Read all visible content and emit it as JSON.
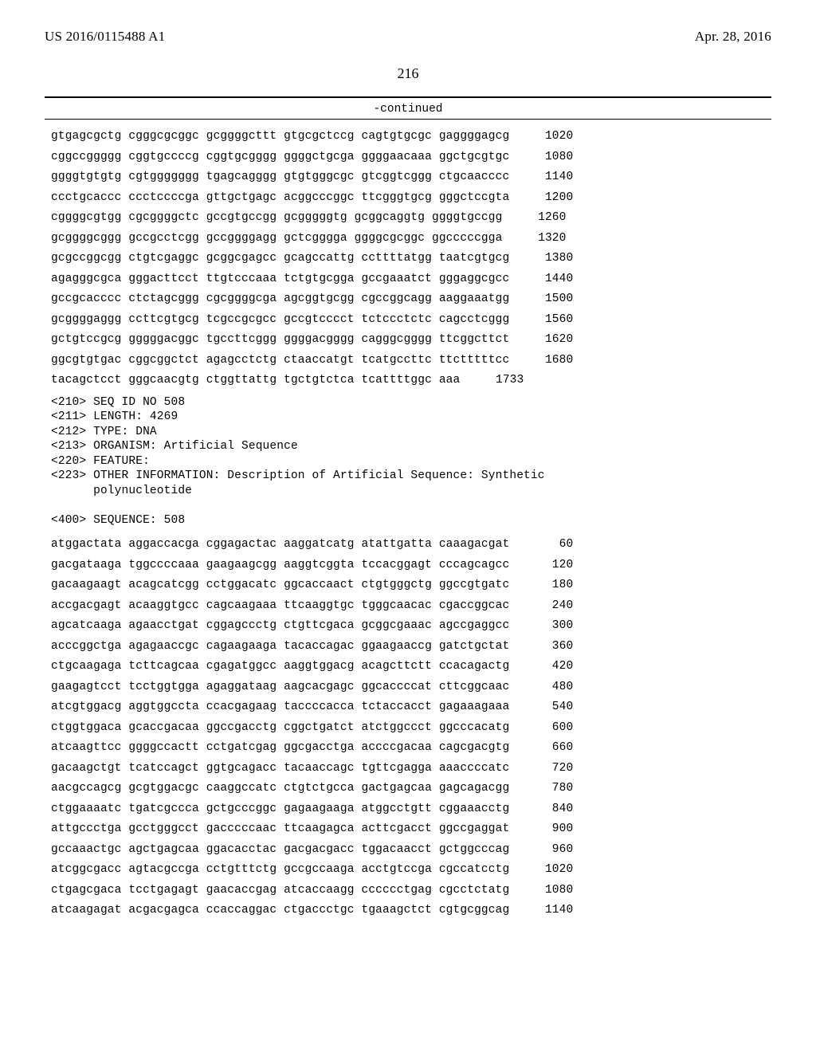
{
  "header": {
    "publication_number": "US 2016/0115488 A1",
    "publication_date": "Apr. 28, 2016",
    "page_number": "216",
    "continued_label": "-continued"
  },
  "sequence_top": {
    "rows": [
      {
        "groups": [
          "gtgagcgctg",
          "cgggcgcggc",
          "gcggggcttt",
          "gtgcgctccg",
          "cagtgtgcgc",
          "gaggggagcg"
        ],
        "pos": "1020"
      },
      {
        "groups": [
          "cggccggggg",
          "cggtgccccg",
          "cggtgcgggg",
          "ggggctgcga",
          "ggggaacaaa",
          "ggctgcgtgc"
        ],
        "pos": "1080"
      },
      {
        "groups": [
          "ggggtgtgtg",
          "cgtggggggg",
          "tgagcagggg",
          "gtgtgggcgc",
          "gtcggtcggg",
          "ctgcaacccc"
        ],
        "pos": "1140"
      },
      {
        "groups": [
          "ccctgcaccc",
          "ccctccccga",
          "gttgctgagc",
          "acggcccggc",
          "ttcgggtgcg",
          "gggctccgta"
        ],
        "pos": "1200"
      },
      {
        "groups": [
          "cggggcgtgg",
          "cgcggggctc",
          "gccgtgccgg",
          "gcgggggtg",
          "gcggcaggtg",
          "ggggtgccgg"
        ],
        "pos": "1260"
      },
      {
        "groups": [
          "gcggggcggg",
          "gccgcctcgg",
          "gccggggagg",
          "gctcgggga",
          "ggggcgcggc",
          "ggcccccgga"
        ],
        "pos": "1320"
      },
      {
        "groups": [
          "gcgccggcgg",
          "ctgtcgaggc",
          "gcggcgagcc",
          "gcagccattg",
          "ccttttatgg",
          "taatcgtgcg"
        ],
        "pos": "1380"
      },
      {
        "groups": [
          "agagggcgca",
          "gggacttcct",
          "ttgtcccaaa",
          "tctgtgcgga",
          "gccgaaatct",
          "gggaggcgcc"
        ],
        "pos": "1440"
      },
      {
        "groups": [
          "gccgcacccc",
          "ctctagcggg",
          "cgcggggcga",
          "agcggtgcgg",
          "cgccggcagg",
          "aaggaaatgg"
        ],
        "pos": "1500"
      },
      {
        "groups": [
          "gcggggaggg",
          "ccttcgtgcg",
          "tcgccgcgcc",
          "gccgtcccct",
          "tctccctctc",
          "cagcctcggg"
        ],
        "pos": "1560"
      },
      {
        "groups": [
          "gctgtccgcg",
          "gggggacggc",
          "tgccttcggg",
          "ggggacgggg",
          "cagggcgggg",
          "ttcggcttct"
        ],
        "pos": "1620"
      },
      {
        "groups": [
          "ggcgtgtgac",
          "cggcggctct",
          "agagcctctg",
          "ctaaccatgt",
          "tcatgccttc",
          "ttctttttcc"
        ],
        "pos": "1680"
      },
      {
        "groups": [
          "tacagctcct",
          "gggcaacgtg",
          "ctggttattg",
          "tgctgtctca",
          "tcattttggc",
          "aaa"
        ],
        "pos": "1733"
      }
    ]
  },
  "metadata": {
    "lines": [
      "<210> SEQ ID NO 508",
      "<211> LENGTH: 4269",
      "<212> TYPE: DNA",
      "<213> ORGANISM: Artificial Sequence",
      "<220> FEATURE:",
      "<223> OTHER INFORMATION: Description of Artificial Sequence: Synthetic",
      "      polynucleotide",
      "",
      "<400> SEQUENCE: 508"
    ]
  },
  "sequence_bottom": {
    "rows": [
      {
        "groups": [
          "atggactata",
          "aggaccacga",
          "cggagactac",
          "aaggatcatg",
          "atattgatta",
          "caaagacgat"
        ],
        "pos": "60"
      },
      {
        "groups": [
          "gacgataaga",
          "tggccccaaa",
          "gaagaagcgg",
          "aaggtcggta",
          "tccacggagt",
          "cccagcagcc"
        ],
        "pos": "120"
      },
      {
        "groups": [
          "gacaagaagt",
          "acagcatcgg",
          "cctggacatc",
          "ggcaccaact",
          "ctgtgggctg",
          "ggccgtgatc"
        ],
        "pos": "180"
      },
      {
        "groups": [
          "accgacgagt",
          "acaaggtgcc",
          "cagcaagaaa",
          "ttcaaggtgc",
          "tgggcaacac",
          "cgaccggcac"
        ],
        "pos": "240"
      },
      {
        "groups": [
          "agcatcaaga",
          "agaacctgat",
          "cggagccctg",
          "ctgttcgaca",
          "gcggcgaaac",
          "agccgaggcc"
        ],
        "pos": "300"
      },
      {
        "groups": [
          "acccggctga",
          "agagaaccgc",
          "cagaagaaga",
          "tacaccagac",
          "ggaagaaccg",
          "gatctgctat"
        ],
        "pos": "360"
      },
      {
        "groups": [
          "ctgcaagaga",
          "tcttcagcaa",
          "cgagatggcc",
          "aaggtggacg",
          "acagcttctt",
          "ccacagactg"
        ],
        "pos": "420"
      },
      {
        "groups": [
          "gaagagtcct",
          "tcctggtgga",
          "agaggataag",
          "aagcacgagc",
          "ggcaccccat",
          "cttcggcaac"
        ],
        "pos": "480"
      },
      {
        "groups": [
          "atcgtggacg",
          "aggtggccta",
          "ccacgagaag",
          "taccccacca",
          "tctaccacct",
          "gagaaagaaa"
        ],
        "pos": "540"
      },
      {
        "groups": [
          "ctggtggaca",
          "gcaccgacaa",
          "ggccgacctg",
          "cggctgatct",
          "atctggccct",
          "ggcccacatg"
        ],
        "pos": "600"
      },
      {
        "groups": [
          "atcaagttcc",
          "ggggccactt",
          "cctgatcgag",
          "ggcgacctga",
          "accccgacaa",
          "cagcgacgtg"
        ],
        "pos": "660"
      },
      {
        "groups": [
          "gacaagctgt",
          "tcatccagct",
          "ggtgcagacc",
          "tacaaccagc",
          "tgttcgagga",
          "aaaccccatc"
        ],
        "pos": "720"
      },
      {
        "groups": [
          "aacgccagcg",
          "gcgtggacgc",
          "caaggccatc",
          "ctgtctgcca",
          "gactgagcaa",
          "gagcagacgg"
        ],
        "pos": "780"
      },
      {
        "groups": [
          "ctggaaaatc",
          "tgatcgccca",
          "gctgcccggc",
          "gagaagaaga",
          "atggcctgtt",
          "cggaaacctg"
        ],
        "pos": "840"
      },
      {
        "groups": [
          "attgccctga",
          "gcctgggcct",
          "gacccccaac",
          "ttcaagagca",
          "acttcgacct",
          "ggccgaggat"
        ],
        "pos": "900"
      },
      {
        "groups": [
          "gccaaactgc",
          "agctgagcaa",
          "ggacacctac",
          "gacgacgacc",
          "tggacaacct",
          "gctggcccag"
        ],
        "pos": "960"
      },
      {
        "groups": [
          "atcggcgacc",
          "agtacgccga",
          "cctgtttctg",
          "gccgccaaga",
          "acctgtccga",
          "cgccatcctg"
        ],
        "pos": "1020"
      },
      {
        "groups": [
          "ctgagcgaca",
          "tcctgagagt",
          "gaacaccgag",
          "atcaccaagg",
          "cccccctgag",
          "cgcctctatg"
        ],
        "pos": "1080"
      },
      {
        "groups": [
          "atcaagagat",
          "acgacgagca",
          "ccaccaggac",
          "ctgaccctgc",
          "tgaaagctct",
          "cgtgcggcag"
        ],
        "pos": "1140"
      }
    ]
  }
}
